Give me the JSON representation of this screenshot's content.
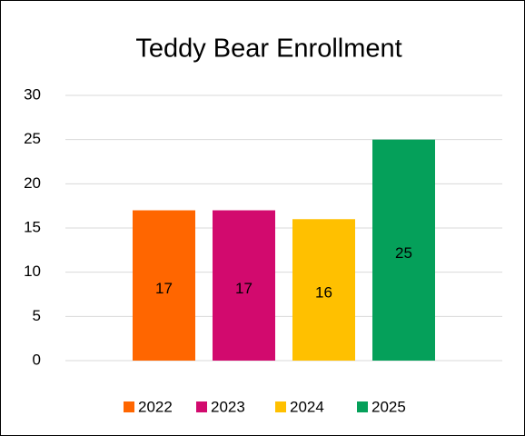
{
  "chart_data": {
    "type": "bar",
    "title": "Teddy Bear Enrollment",
    "categories": [
      null
    ],
    "series": [
      {
        "name": "2022",
        "color": "#ff6600",
        "values": [
          17
        ]
      },
      {
        "name": "2023",
        "color": "#d20a6e",
        "values": [
          17
        ]
      },
      {
        "name": "2024",
        "color": "#ffc000",
        "values": [
          16
        ]
      },
      {
        "name": "2025",
        "color": "#05a05a",
        "values": [
          25
        ]
      }
    ],
    "ylim": [
      0,
      30
    ],
    "yticks": [
      0,
      5,
      10,
      15,
      20,
      25,
      30
    ],
    "grid": true,
    "legend": "bottom"
  }
}
